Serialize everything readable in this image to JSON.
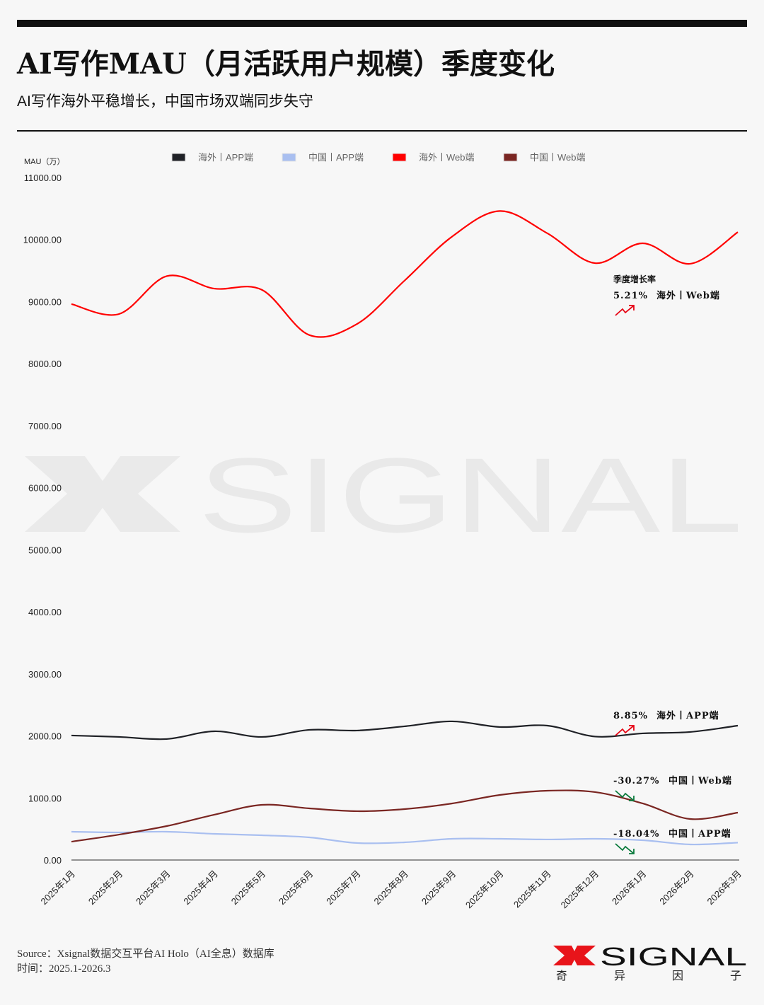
{
  "header": {
    "title": "AI写作MAU（月活跃用户规模）季度变化",
    "subtitle": "AI写作海外平稳增长，中国市场双端同步失守"
  },
  "chart_data": {
    "type": "line",
    "title": "AI写作MAU（月活跃用户规模）季度变化",
    "ylabel": "MAU（万）",
    "xlabel": "",
    "ylim": [
      0,
      11000
    ],
    "yticks": [
      "0.00",
      "1000.00",
      "2000.00",
      "3000.00",
      "4000.00",
      "5000.00",
      "6000.00",
      "7000.00",
      "8000.00",
      "9000.00",
      "10000.00",
      "11000.00"
    ],
    "grid": false,
    "legend": "top",
    "categories": [
      "2025年1月",
      "2025年2月",
      "2025年3月",
      "2025年4月",
      "2025年5月",
      "2025年6月",
      "2025年7月",
      "2025年8月",
      "2025年9月",
      "2025年10月",
      "2025年11月",
      "2025年12月",
      "2026年1月",
      "2026年2月",
      "2026年3月"
    ],
    "series": [
      {
        "name": "海外丨APP端",
        "color": "#1f2126",
        "values": [
          2007,
          1984,
          1950,
          2075,
          1984,
          2098,
          2087,
          2155,
          2235,
          2144,
          2166,
          1990,
          2041,
          2064,
          2166
        ]
      },
      {
        "name": "中国丨APP端",
        "color": "#a9bff0",
        "values": [
          456,
          445,
          456,
          422,
          399,
          365,
          274,
          285,
          342,
          342,
          331,
          342,
          319,
          251,
          280
        ]
      },
      {
        "name": "海外丨Web端",
        "color": "#ff0000",
        "values": [
          8960,
          8800,
          9410,
          9210,
          9190,
          8460,
          8640,
          9340,
          10050,
          10460,
          10100,
          9620,
          9940,
          9610,
          10120
        ]
      },
      {
        "name": "中国丨Web端",
        "color": "#7a2622",
        "values": [
          296,
          410,
          547,
          730,
          889,
          832,
          787,
          821,
          912,
          1049,
          1117,
          1095,
          912,
          661,
          764
        ]
      }
    ],
    "annotations": {
      "heading": "季度增长率",
      "items": [
        {
          "value": "5.21%",
          "label": "海外丨Web端",
          "trend": "up",
          "color": "#e60012"
        },
        {
          "value": "8.85%",
          "label": "海外丨APP端",
          "trend": "up",
          "color": "#e60012"
        },
        {
          "value": "-30.27%",
          "label": "中国丨Web端",
          "trend": "down",
          "color": "#0a7a3c"
        },
        {
          "value": "-18.04%",
          "label": "中国丨APP端",
          "trend": "down",
          "color": "#0a7a3c"
        }
      ]
    }
  },
  "watermark": "X SIGNAL",
  "footer": {
    "source": "Source：Xsignal数据交互平台AI Holo（AI全息）数据库",
    "time": "时间：2025.1-2026.3"
  },
  "logo": {
    "text": "SIGNAL",
    "sub": [
      "奇",
      "异",
      "因",
      "子"
    ]
  }
}
